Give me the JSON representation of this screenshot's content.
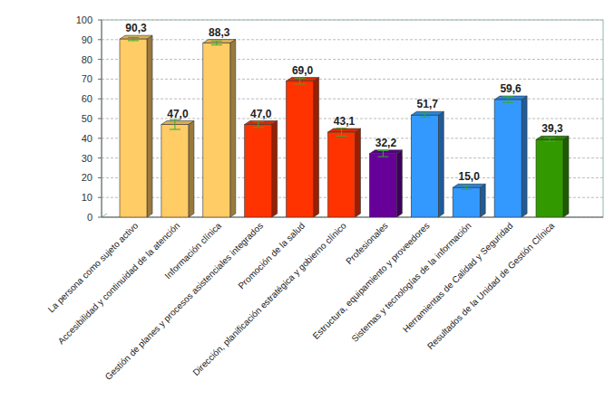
{
  "chart_data": {
    "type": "bar",
    "categories": [
      "La persona como sujeto activo",
      "Accesibilidad y continuidad de la atención",
      "Información clínica",
      "Gestión de planes y procesos asistenciales integrados",
      "Promoción de la salud",
      "Dirección, planificación estratégica y gobierno clínico",
      "Profesionales",
      "Estructura, equipamiento y proveedores",
      "Sistemas y tecnologías de la información",
      "Herramientas de Calidad y Seguridad",
      "Resultados de la Unidad de Gestión Clínica"
    ],
    "values": [
      90.3,
      47.0,
      88.3,
      47.0,
      69.0,
      43.1,
      32.2,
      51.7,
      15.0,
      59.6,
      39.3
    ],
    "value_labels": [
      "90,3",
      "47,0",
      "88,3",
      "47,0",
      "69,0",
      "43,1",
      "32,2",
      "51,7",
      "15,0",
      "59,6",
      "39,3"
    ],
    "errors": [
      0.8,
      2.5,
      1.0,
      1.5,
      1.5,
      2.0,
      1.5,
      1.0,
      1.0,
      1.5,
      1.0
    ],
    "colors": [
      "#ffcc66",
      "#ffcc66",
      "#ffcc66",
      "#ff3300",
      "#ff3300",
      "#ff3300",
      "#660099",
      "#3399ff",
      "#3399ff",
      "#3399ff",
      "#339900"
    ],
    "ylim": [
      0,
      100
    ],
    "yticks": [
      0,
      10,
      20,
      30,
      40,
      50,
      60,
      70,
      80,
      90,
      100
    ],
    "grid": true,
    "data_labels": true
  }
}
